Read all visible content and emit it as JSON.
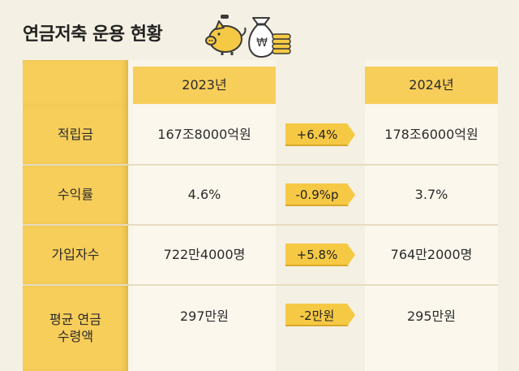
{
  "title": "연금저축 운용 현황",
  "header": {
    "year_a": "2023년",
    "year_b": "2024년"
  },
  "rows": [
    {
      "label": "적립금",
      "a": "167조8000억원",
      "change": "+6.4%",
      "b": "178조6000억원"
    },
    {
      "label": "수익률",
      "a": "4.6%",
      "change": "-0.9%p",
      "b": "3.7%"
    },
    {
      "label": "가입자수",
      "a": "722만4000명",
      "change": "+5.8%",
      "b": "764만2000명"
    },
    {
      "label_line1": "평균 연금",
      "label_line2": "수령액",
      "a": "297만원",
      "change": "-2만원",
      "b": "295만원"
    }
  ],
  "colors": {
    "accent": "#f7ce5a",
    "background": "#f4f0e3",
    "badge": "#f6c945"
  },
  "icons": [
    "piggy-bank-icon",
    "money-bag-icon",
    "coin-stack-icon"
  ]
}
